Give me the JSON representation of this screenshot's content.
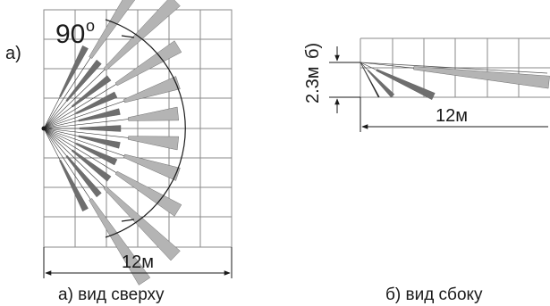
{
  "top_view": {
    "panel_label": "а)",
    "angle_label": "90",
    "degree_mark": "o",
    "distance_label": "12м",
    "caption": "а) вид сверху",
    "beams": [
      {
        "kind": "short",
        "tone": "dark"
      },
      {
        "kind": "long",
        "tone": "light"
      },
      {
        "kind": "short",
        "tone": "dark"
      },
      {
        "kind": "long",
        "tone": "light"
      },
      {
        "kind": "short",
        "tone": "dark"
      },
      {
        "kind": "long",
        "tone": "light"
      },
      {
        "kind": "short",
        "tone": "dark"
      },
      {
        "kind": "long",
        "tone": "light"
      },
      {
        "kind": "short",
        "tone": "dark"
      },
      {
        "kind": "long",
        "tone": "light"
      },
      {
        "kind": "short",
        "tone": "dark"
      },
      {
        "kind": "long",
        "tone": "light"
      },
      {
        "kind": "short",
        "tone": "dark"
      },
      {
        "kind": "long",
        "tone": "light"
      },
      {
        "kind": "short",
        "tone": "dark"
      },
      {
        "kind": "long",
        "tone": "light"
      },
      {
        "kind": "short",
        "tone": "dark"
      },
      {
        "kind": "long",
        "tone": "light"
      },
      {
        "kind": "short",
        "tone": "dark"
      },
      {
        "kind": "long",
        "tone": "light"
      },
      {
        "kind": "short",
        "tone": "dark"
      }
    ]
  },
  "side_view": {
    "panel_label": "б)",
    "height_label": "2.3м",
    "distance_label": "12м",
    "caption": "б) вид сбоку",
    "beams": [
      {
        "kind": "line",
        "tone": "black"
      },
      {
        "kind": "short",
        "tone": "dark"
      },
      {
        "kind": "mid",
        "tone": "dark"
      },
      {
        "kind": "long",
        "tone": "light"
      }
    ]
  },
  "colors": {
    "ink": "#1a1a1a",
    "grid": "#8a8a8a",
    "beam_light": "#b4b4b4",
    "beam_dark": "#6e6e6e",
    "background": "#ffffff"
  }
}
